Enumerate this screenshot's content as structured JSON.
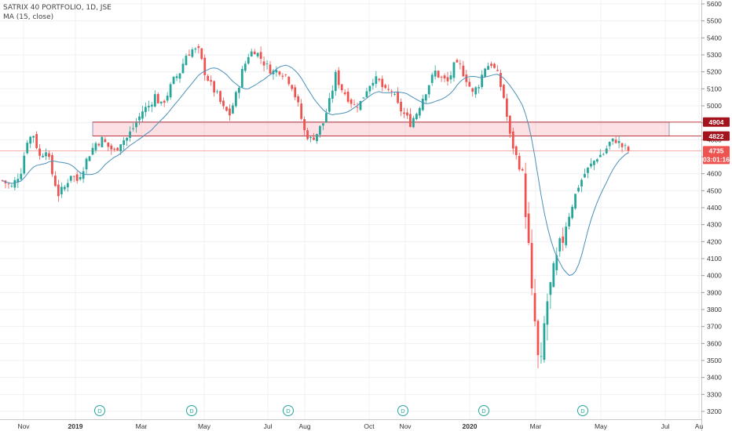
{
  "legend": {
    "title": "SATRIX 40 PORTFOLIO, 1D, JSE",
    "indicator": "MA (15, close)"
  },
  "price_tags": {
    "upper": "4904",
    "lower": "4822",
    "last_price": "4735",
    "countdown": "03:01:16"
  },
  "chart_data": {
    "type": "candlestick",
    "symbol": "SATRIX 40 PORTFOLIO",
    "interval": "1D",
    "exchange": "JSE",
    "indicator": "MA (15, close)",
    "x_labels": [
      "Nov",
      "2019",
      "Mar",
      "May",
      "Jul",
      "Aug",
      "Oct",
      "Nov",
      "2020",
      "Mar",
      "May",
      "Jul",
      "Au"
    ],
    "y_ticks": [
      3200,
      3300,
      3400,
      3500,
      3600,
      3700,
      3800,
      3900,
      4000,
      4100,
      4200,
      4300,
      4400,
      4500,
      4600,
      4700,
      4800,
      4900,
      5000,
      5100,
      5200,
      5300,
      5400,
      5500,
      5600
    ],
    "ylim": [
      3150,
      5620
    ],
    "grid": true,
    "dividend_markers": [
      "D",
      "D",
      "D",
      "D",
      "D",
      "D"
    ],
    "horizontal_levels": [
      4904,
      4822,
      4735
    ],
    "zone": {
      "from": 4822,
      "to": 4904
    },
    "last_price": 4735,
    "close_path": [
      [
        0,
        4560
      ],
      [
        3,
        4520
      ],
      [
        6,
        4620
      ],
      [
        8,
        4800
      ],
      [
        10,
        4830
      ],
      [
        12,
        4700
      ],
      [
        14,
        4750
      ],
      [
        16,
        4600
      ],
      [
        18,
        4480
      ],
      [
        20,
        4520
      ],
      [
        22,
        4600
      ],
      [
        24,
        4560
      ],
      [
        26,
        4640
      ],
      [
        28,
        4720
      ],
      [
        30,
        4780
      ],
      [
        32,
        4800
      ],
      [
        34,
        4760
      ],
      [
        36,
        4730
      ],
      [
        38,
        4790
      ],
      [
        40,
        4810
      ],
      [
        43,
        4900
      ],
      [
        45,
        4970
      ],
      [
        47,
        5000
      ],
      [
        49,
        5060
      ],
      [
        51,
        5000
      ],
      [
        53,
        5070
      ],
      [
        55,
        5150
      ],
      [
        57,
        5200
      ],
      [
        59,
        5300
      ],
      [
        61,
        5330
      ],
      [
        63,
        5320
      ],
      [
        65,
        5200
      ],
      [
        67,
        5120
      ],
      [
        69,
        5060
      ],
      [
        71,
        4980
      ],
      [
        73,
        4950
      ],
      [
        75,
        5060
      ],
      [
        77,
        5200
      ],
      [
        79,
        5300
      ],
      [
        81,
        5330
      ],
      [
        83,
        5280
      ],
      [
        85,
        5230
      ],
      [
        87,
        5200
      ],
      [
        89,
        5210
      ],
      [
        91,
        5180
      ],
      [
        93,
        5120
      ],
      [
        95,
        5000
      ],
      [
        97,
        4850
      ],
      [
        99,
        4800
      ],
      [
        101,
        4840
      ],
      [
        103,
        4900
      ],
      [
        105,
        5020
      ],
      [
        107,
        5180
      ],
      [
        109,
        5100
      ],
      [
        111,
        5050
      ],
      [
        113,
        5000
      ],
      [
        115,
        5020
      ],
      [
        117,
        5100
      ],
      [
        119,
        5160
      ],
      [
        121,
        5140
      ],
      [
        123,
        5080
      ],
      [
        125,
        5090
      ],
      [
        127,
        5000
      ],
      [
        129,
        4950
      ],
      [
        131,
        4900
      ],
      [
        133,
        4960
      ],
      [
        135,
        5050
      ],
      [
        137,
        5130
      ],
      [
        139,
        5200
      ],
      [
        141,
        5160
      ],
      [
        143,
        5140
      ],
      [
        145,
        5230
      ],
      [
        147,
        5230
      ],
      [
        149,
        5160
      ],
      [
        151,
        5070
      ],
      [
        153,
        5130
      ],
      [
        155,
        5230
      ],
      [
        157,
        5250
      ],
      [
        159,
        5180
      ],
      [
        161,
        5050
      ],
      [
        163,
        4820
      ],
      [
        165,
        4700
      ],
      [
        167,
        4600
      ],
      [
        168,
        4400
      ],
      [
        169,
        4150
      ],
      [
        170,
        3870
      ],
      [
        171,
        3720
      ],
      [
        172,
        3500
      ],
      [
        173,
        3460
      ],
      [
        174,
        3700
      ],
      [
        175,
        3850
      ],
      [
        177,
        4000
      ],
      [
        179,
        4150
      ],
      [
        181,
        4300
      ],
      [
        183,
        4420
      ],
      [
        185,
        4530
      ],
      [
        187,
        4600
      ],
      [
        189,
        4650
      ],
      [
        191,
        4700
      ],
      [
        193,
        4720
      ],
      [
        195,
        4780
      ],
      [
        197,
        4800
      ],
      [
        199,
        4760
      ],
      [
        201,
        4735
      ]
    ]
  }
}
